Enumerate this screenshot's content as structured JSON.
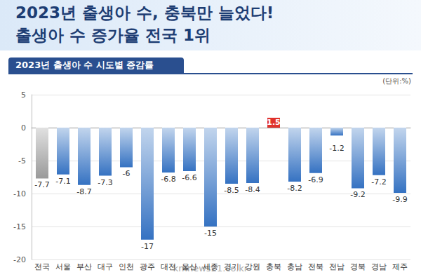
{
  "chart_data": {
    "type": "bar",
    "title": "2023년 출생아 수, 충북만 늘었다!",
    "subtitle": "출생아 수 증가율 전국 1위",
    "panel_title": "2023년 출생아 수 시도별 증감률",
    "unit": "(단위:%)",
    "source": "kmnews21.co.kr",
    "categories": [
      "전국",
      "서울",
      "부산",
      "대구",
      "인천",
      "광주",
      "대전",
      "울산",
      "세종",
      "경기",
      "강원",
      "충북",
      "충남",
      "전북",
      "전남",
      "경북",
      "경남",
      "제주"
    ],
    "values": [
      -7.7,
      -7.1,
      -8.7,
      -7.3,
      -6,
      -17,
      -6.8,
      -6.6,
      -15,
      -8.5,
      -8.4,
      1.5,
      -8.2,
      -6.9,
      -1.2,
      -9.2,
      -7.2,
      -9.9
    ],
    "colors": [
      "#9a9a9a",
      "#3572c2",
      "#3572c2",
      "#3572c2",
      "#3572c2",
      "#3572c2",
      "#3572c2",
      "#3572c2",
      "#3572c2",
      "#3572c2",
      "#3572c2",
      "#e0322b",
      "#3572c2",
      "#3572c2",
      "#3572c2",
      "#3572c2",
      "#3572c2",
      "#3572c2"
    ],
    "ylim": [
      -20,
      5
    ],
    "yticks": [
      -20,
      -15,
      -10,
      -5,
      0,
      5
    ],
    "grid": true,
    "data_labels": true
  }
}
